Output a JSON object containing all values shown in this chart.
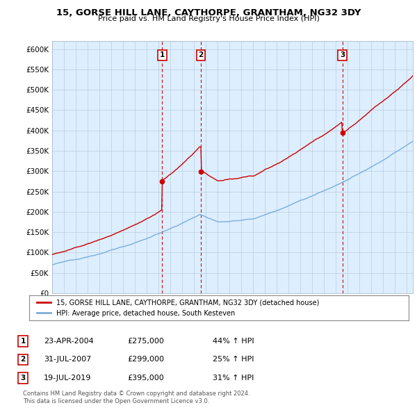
{
  "title": "15, GORSE HILL LANE, CAYTHORPE, GRANTHAM, NG32 3DY",
  "subtitle": "Price paid vs. HM Land Registry's House Price Index (HPI)",
  "ylabel_ticks": [
    "£0",
    "£50K",
    "£100K",
    "£150K",
    "£200K",
    "£250K",
    "£300K",
    "£350K",
    "£400K",
    "£450K",
    "£500K",
    "£550K",
    "£600K"
  ],
  "ytick_vals": [
    0,
    50000,
    100000,
    150000,
    200000,
    250000,
    300000,
    350000,
    400000,
    450000,
    500000,
    550000,
    600000
  ],
  "ylim": [
    0,
    620000
  ],
  "xlim_start": 1995.0,
  "xlim_end": 2025.5,
  "sale_dates": [
    2004.31,
    2007.58,
    2019.54
  ],
  "sale_prices": [
    275000,
    299000,
    395000
  ],
  "sale_labels": [
    "1",
    "2",
    "3"
  ],
  "legend_red": "15, GORSE HILL LANE, CAYTHORPE, GRANTHAM, NG32 3DY (detached house)",
  "legend_blue": "HPI: Average price, detached house, South Kesteven",
  "table_data": [
    [
      "1",
      "23-APR-2004",
      "£275,000",
      "44% ↑ HPI"
    ],
    [
      "2",
      "31-JUL-2007",
      "£299,000",
      "25% ↑ HPI"
    ],
    [
      "3",
      "19-JUL-2019",
      "£395,000",
      "31% ↑ HPI"
    ]
  ],
  "footer": "Contains HM Land Registry data © Crown copyright and database right 2024.\nThis data is licensed under the Open Government Licence v3.0.",
  "red_color": "#cc0000",
  "blue_color": "#7aaddb",
  "bg_color": "#ddeeff",
  "grid_color": "#bbccdd",
  "vline_color": "#cc0000",
  "hpi_base_1995": 70000,
  "hpi_peak_2007": 195000,
  "hpi_trough_2009": 178000,
  "hpi_2012": 182000,
  "hpi_2025": 375000,
  "red_base_1995": 95000,
  "sale1_date": 2004.31,
  "sale1_price": 275000,
  "sale2_date": 2007.58,
  "sale2_price": 299000,
  "sale3_date": 2019.54,
  "sale3_price": 395000
}
